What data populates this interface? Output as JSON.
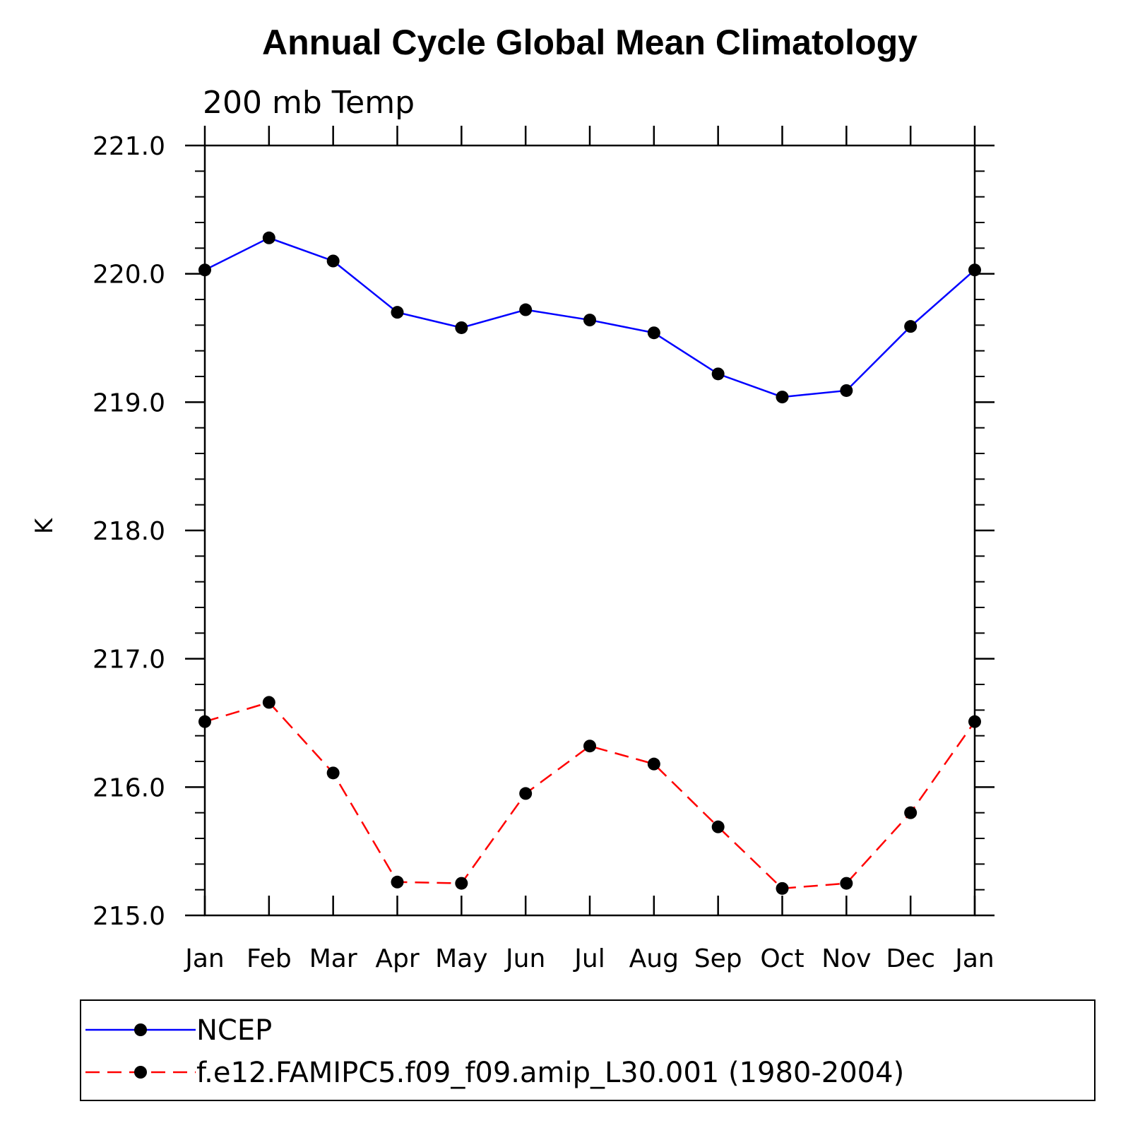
{
  "chart_data": {
    "type": "line",
    "title": "Annual Cycle Global Mean Climatology",
    "subtitle": "200 mb Temp",
    "xlabel": "",
    "ylabel": "K",
    "categories": [
      "Jan",
      "Feb",
      "Mar",
      "Apr",
      "May",
      "Jun",
      "Jul",
      "Aug",
      "Sep",
      "Oct",
      "Nov",
      "Dec",
      "Jan"
    ],
    "ylim": [
      215.0,
      221.0
    ],
    "yticks": [
      "215.0",
      "216.0",
      "217.0",
      "218.0",
      "219.0",
      "220.0",
      "221.0"
    ],
    "grid": false,
    "legend": "bottom",
    "series": [
      {
        "name": "NCEP",
        "color": "#0000ff",
        "dash": "solid",
        "values": [
          220.03,
          220.28,
          220.1,
          219.7,
          219.58,
          219.72,
          219.64,
          219.54,
          219.22,
          219.04,
          219.09,
          219.59,
          220.03
        ]
      },
      {
        "name": "f.e12.FAMIPC5.f09_f09.amip_L30.001 (1980-2004)",
        "color": "#ff0000",
        "dash": "dashed",
        "values": [
          216.51,
          216.66,
          216.11,
          215.26,
          215.25,
          215.95,
          216.32,
          216.18,
          215.69,
          215.21,
          215.25,
          215.8,
          216.51
        ]
      }
    ]
  }
}
